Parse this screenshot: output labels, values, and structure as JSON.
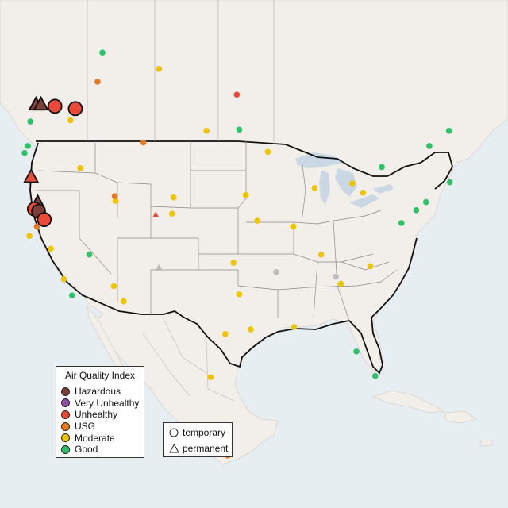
{
  "colors": {
    "Hazardous": "#7e3f3c",
    "Very Unhealthy": "#8e4fa6",
    "Unhealthy": "#ea4a3a",
    "USG": "#e9771e",
    "Moderate": "#efc400",
    "Good": "#2fc06a",
    "nodata": "#bdbdbd"
  },
  "legend": {
    "title": "Air Quality Index",
    "items": [
      "Hazardous",
      "Very Unhealthy",
      "Unhealthy",
      "USG",
      "Moderate",
      "Good"
    ]
  },
  "type_legend": {
    "temporary": "temporary",
    "permanent": "permanent"
  },
  "map": {
    "bbox_lonlat": [
      -126,
      14.5,
      -64,
      58
    ],
    "large_monitors": [
      {
        "lon": -121.6,
        "lat": 49.0,
        "cat": "Hazardous",
        "shape": "triangle"
      },
      {
        "lon": -121.0,
        "lat": 49.0,
        "cat": "Hazardous",
        "shape": "triangle"
      },
      {
        "lon": -119.3,
        "lat": 48.9,
        "cat": "Unhealthy",
        "shape": "circle"
      },
      {
        "lon": -116.8,
        "lat": 48.7,
        "cat": "Unhealthy",
        "shape": "circle"
      },
      {
        "lon": -122.2,
        "lat": 42.8,
        "cat": "Unhealthy",
        "shape": "triangle"
      },
      {
        "lon": -121.4,
        "lat": 40.6,
        "cat": "Hazardous",
        "shape": "triangle"
      },
      {
        "lon": -121.8,
        "lat": 40.1,
        "cat": "Unhealthy",
        "shape": "circle"
      },
      {
        "lon": -121.3,
        "lat": 39.9,
        "cat": "Hazardous",
        "shape": "circle"
      },
      {
        "lon": -120.6,
        "lat": 39.2,
        "cat": "Unhealthy",
        "shape": "circle"
      }
    ],
    "small_monitors": [
      {
        "lon": -122.3,
        "lat": 47.6,
        "cat": "Good",
        "shape": "circle"
      },
      {
        "lon": -122.6,
        "lat": 45.5,
        "cat": "Good",
        "shape": "circle"
      },
      {
        "lon": -123.0,
        "lat": 44.9,
        "cat": "Good",
        "shape": "circle"
      },
      {
        "lon": -117.4,
        "lat": 47.7,
        "cat": "Moderate",
        "shape": "circle"
      },
      {
        "lon": -116.2,
        "lat": 43.6,
        "cat": "Moderate",
        "shape": "circle"
      },
      {
        "lon": -111.9,
        "lat": 40.8,
        "cat": "Moderate",
        "shape": "circle"
      },
      {
        "lon": -112.0,
        "lat": 41.2,
        "cat": "USG",
        "shape": "circle"
      },
      {
        "lon": -108.5,
        "lat": 45.8,
        "cat": "USG",
        "shape": "circle"
      },
      {
        "lon": -107.0,
        "lat": 39.6,
        "cat": "Unhealthy",
        "shape": "triangle"
      },
      {
        "lon": -105.0,
        "lat": 39.7,
        "cat": "Moderate",
        "shape": "circle"
      },
      {
        "lon": -106.6,
        "lat": 35.1,
        "cat": "nodata",
        "shape": "triangle"
      },
      {
        "lon": -110.9,
        "lat": 32.2,
        "cat": "Moderate",
        "shape": "circle"
      },
      {
        "lon": -112.1,
        "lat": 33.5,
        "cat": "Moderate",
        "shape": "circle"
      },
      {
        "lon": -115.1,
        "lat": 36.2,
        "cat": "Good",
        "shape": "circle"
      },
      {
        "lon": -118.2,
        "lat": 34.1,
        "cat": "Moderate",
        "shape": "circle"
      },
      {
        "lon": -117.2,
        "lat": 32.7,
        "cat": "Good",
        "shape": "circle"
      },
      {
        "lon": -122.4,
        "lat": 37.8,
        "cat": "Moderate",
        "shape": "circle"
      },
      {
        "lon": -121.5,
        "lat": 38.6,
        "cat": "USG",
        "shape": "circle"
      },
      {
        "lon": -119.8,
        "lat": 36.7,
        "cat": "Moderate",
        "shape": "circle"
      },
      {
        "lon": -104.8,
        "lat": 41.1,
        "cat": "Moderate",
        "shape": "circle"
      },
      {
        "lon": -100.8,
        "lat": 46.8,
        "cat": "Moderate",
        "shape": "circle"
      },
      {
        "lon": -96.8,
        "lat": 46.9,
        "cat": "Good",
        "shape": "circle"
      },
      {
        "lon": -93.3,
        "lat": 45.0,
        "cat": "Moderate",
        "shape": "circle"
      },
      {
        "lon": -87.6,
        "lat": 41.9,
        "cat": "Moderate",
        "shape": "circle"
      },
      {
        "lon": -83.0,
        "lat": 42.3,
        "cat": "Moderate",
        "shape": "circle"
      },
      {
        "lon": -81.7,
        "lat": 41.5,
        "cat": "Moderate",
        "shape": "circle"
      },
      {
        "lon": -90.2,
        "lat": 38.6,
        "cat": "Moderate",
        "shape": "circle"
      },
      {
        "lon": -86.8,
        "lat": 36.2,
        "cat": "Moderate",
        "shape": "circle"
      },
      {
        "lon": -84.4,
        "lat": 33.7,
        "cat": "Moderate",
        "shape": "circle"
      },
      {
        "lon": -80.8,
        "lat": 35.2,
        "cat": "Moderate",
        "shape": "circle"
      },
      {
        "lon": -77.0,
        "lat": 38.9,
        "cat": "Good",
        "shape": "circle"
      },
      {
        "lon": -75.2,
        "lat": 40.0,
        "cat": "Good",
        "shape": "circle"
      },
      {
        "lon": -74.0,
        "lat": 40.7,
        "cat": "Good",
        "shape": "circle"
      },
      {
        "lon": -71.1,
        "lat": 42.4,
        "cat": "Good",
        "shape": "circle"
      },
      {
        "lon": -80.2,
        "lat": 25.8,
        "cat": "Good",
        "shape": "circle"
      },
      {
        "lon": -82.5,
        "lat": 27.9,
        "cat": "Good",
        "shape": "circle"
      },
      {
        "lon": -90.1,
        "lat": 30.0,
        "cat": "Moderate",
        "shape": "circle"
      },
      {
        "lon": -95.4,
        "lat": 29.8,
        "cat": "Moderate",
        "shape": "circle"
      },
      {
        "lon": -96.8,
        "lat": 32.8,
        "cat": "Moderate",
        "shape": "circle"
      },
      {
        "lon": -98.5,
        "lat": 29.4,
        "cat": "Moderate",
        "shape": "circle"
      },
      {
        "lon": -97.5,
        "lat": 35.5,
        "cat": "Moderate",
        "shape": "circle"
      },
      {
        "lon": -94.6,
        "lat": 39.1,
        "cat": "Moderate",
        "shape": "circle"
      },
      {
        "lon": -96.0,
        "lat": 41.3,
        "cat": "Moderate",
        "shape": "circle"
      },
      {
        "lon": -92.3,
        "lat": 34.7,
        "cat": "nodata",
        "shape": "circle"
      },
      {
        "lon": -85.0,
        "lat": 34.3,
        "cat": "nodata",
        "shape": "circle"
      },
      {
        "lon": -114.1,
        "lat": 51.0,
        "cat": "USG",
        "shape": "circle"
      },
      {
        "lon": -113.5,
        "lat": 53.5,
        "cat": "Good",
        "shape": "circle"
      },
      {
        "lon": -106.6,
        "lat": 52.1,
        "cat": "Moderate",
        "shape": "circle"
      },
      {
        "lon": -97.1,
        "lat": 49.9,
        "cat": "Unhealthy",
        "shape": "circle"
      },
      {
        "lon": -79.4,
        "lat": 43.7,
        "cat": "Good",
        "shape": "circle"
      },
      {
        "lon": -73.6,
        "lat": 45.5,
        "cat": "Good",
        "shape": "circle"
      },
      {
        "lon": -71.2,
        "lat": 46.8,
        "cat": "Good",
        "shape": "circle"
      },
      {
        "lon": -63.6,
        "lat": 44.6,
        "cat": "Good",
        "shape": "circle"
      },
      {
        "lon": -99.1,
        "lat": 19.4,
        "cat": "Moderate",
        "shape": "circle"
      },
      {
        "lon": -98.2,
        "lat": 19.0,
        "cat": "USG",
        "shape": "circle"
      },
      {
        "lon": -100.3,
        "lat": 25.7,
        "cat": "Moderate",
        "shape": "circle"
      }
    ]
  }
}
